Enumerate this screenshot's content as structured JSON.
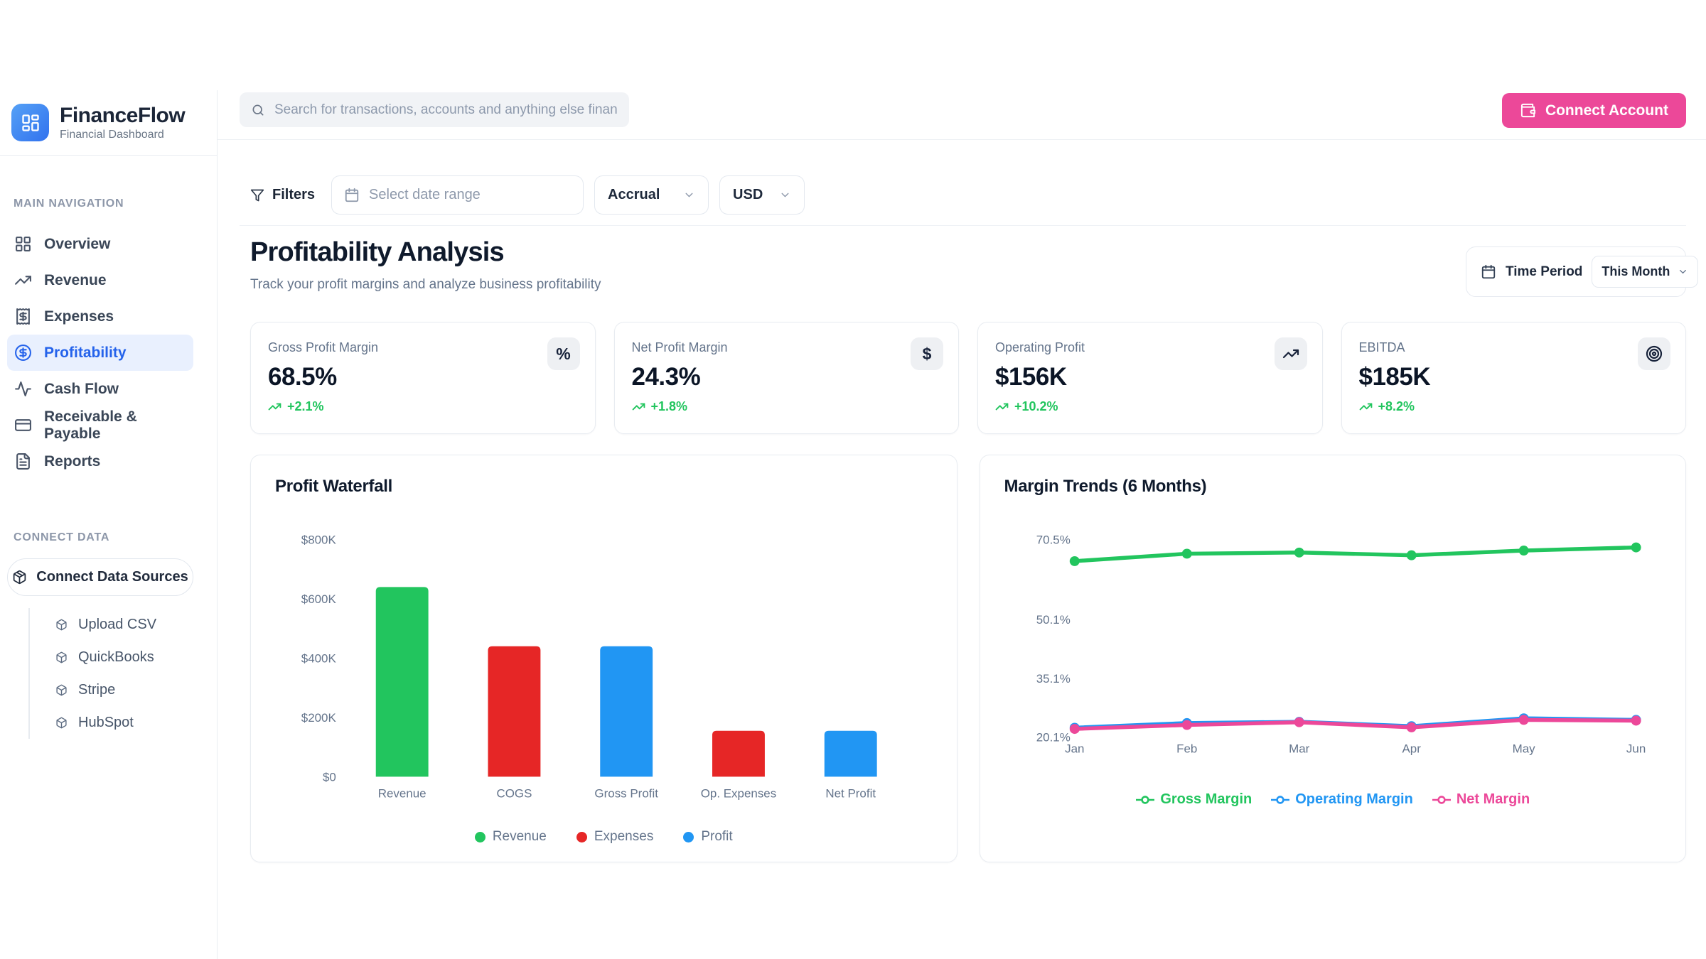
{
  "brand": {
    "name": "FinanceFlow",
    "subtitle": "Financial Dashboard"
  },
  "header": {
    "search_placeholder": "Search for transactions, accounts and anything else financial",
    "connect_account_label": "Connect Account"
  },
  "filters": {
    "label": "Filters",
    "date_placeholder": "Select date range",
    "basis_value": "Accrual",
    "currency_value": "USD"
  },
  "page": {
    "title": "Profitability Analysis",
    "subtitle": "Track your profit margins and analyze business profitability",
    "time_period_label": "Time Period",
    "time_period_value": "This Month"
  },
  "sidebar": {
    "main_nav_label": "MAIN NAVIGATION",
    "items": [
      {
        "label": "Overview"
      },
      {
        "label": "Revenue"
      },
      {
        "label": "Expenses"
      },
      {
        "label": "Profitability",
        "active": true
      },
      {
        "label": "Cash Flow"
      },
      {
        "label": "Receivable & Payable"
      },
      {
        "label": "Reports"
      }
    ],
    "connect_label": "CONNECT DATA",
    "connect_button": "Connect Data Sources",
    "connect_items": [
      {
        "label": "Upload CSV"
      },
      {
        "label": "QuickBooks"
      },
      {
        "label": "Stripe"
      },
      {
        "label": "HubSpot"
      }
    ]
  },
  "kpis": [
    {
      "label": "Gross Profit Margin",
      "value": "68.5%",
      "delta": "+2.1%",
      "icon": "percent",
      "icon_glyph": "%"
    },
    {
      "label": "Net Profit Margin",
      "value": "24.3%",
      "delta": "+1.8%",
      "icon": "dollar",
      "icon_glyph": "$"
    },
    {
      "label": "Operating Profit",
      "value": "$156K",
      "delta": "+10.2%",
      "icon": "trending-up"
    },
    {
      "label": "EBITDA",
      "value": "$185K",
      "delta": "+8.2%",
      "icon": "target"
    }
  ],
  "chart_data": [
    {
      "type": "bar",
      "title": "Profit Waterfall",
      "categories": [
        "Revenue",
        "COGS",
        "Gross Profit",
        "Op. Expenses",
        "Net Profit"
      ],
      "values": [
        640000,
        440000,
        440000,
        155000,
        155000
      ],
      "bar_colors": [
        "#22c55e",
        "#e62626",
        "#2196f3",
        "#e62626",
        "#2196f3"
      ],
      "ylim": [
        0,
        800000
      ],
      "ytick_values": [
        800000,
        600000,
        400000,
        200000,
        0
      ],
      "ytick_labels": [
        "$800K",
        "$600K",
        "$400K",
        "$200K",
        "$0"
      ],
      "grid": false,
      "legend_position": "bottom",
      "legend": [
        {
          "label": "Revenue",
          "color": "#22c55e"
        },
        {
          "label": "Expenses",
          "color": "#e62626"
        },
        {
          "label": "Profit",
          "color": "#2196f3"
        }
      ]
    },
    {
      "type": "line",
      "title": "Margin Trends (6 Months)",
      "x": [
        "Jan",
        "Feb",
        "Mar",
        "Apr",
        "May",
        "Jun"
      ],
      "series": [
        {
          "name": "Gross Margin",
          "color": "#22c55e",
          "values": [
            65.0,
            66.9,
            67.2,
            66.5,
            67.7,
            68.5
          ]
        },
        {
          "name": "Operating Margin",
          "color": "#2196f3",
          "values": [
            22.5,
            23.7,
            24.0,
            22.9,
            24.9,
            24.5
          ]
        },
        {
          "name": "Net Margin",
          "color": "#ec4899",
          "values": [
            22.2,
            23.2,
            23.9,
            22.6,
            24.5,
            24.3
          ]
        }
      ],
      "ylim": [
        18.5,
        72.5
      ],
      "ytick_values": [
        70.5,
        50.1,
        35.1,
        20.1
      ],
      "ytick_labels": [
        "70.5%",
        "50.1%",
        "35.1%",
        "20.1%"
      ],
      "grid": false,
      "legend_position": "bottom"
    }
  ],
  "colors": {
    "accent_blue": "#2563eb",
    "accent_pink": "#ec4899",
    "positive_green": "#22c55e",
    "chart_red": "#e62626",
    "chart_blue": "#2196f3"
  }
}
